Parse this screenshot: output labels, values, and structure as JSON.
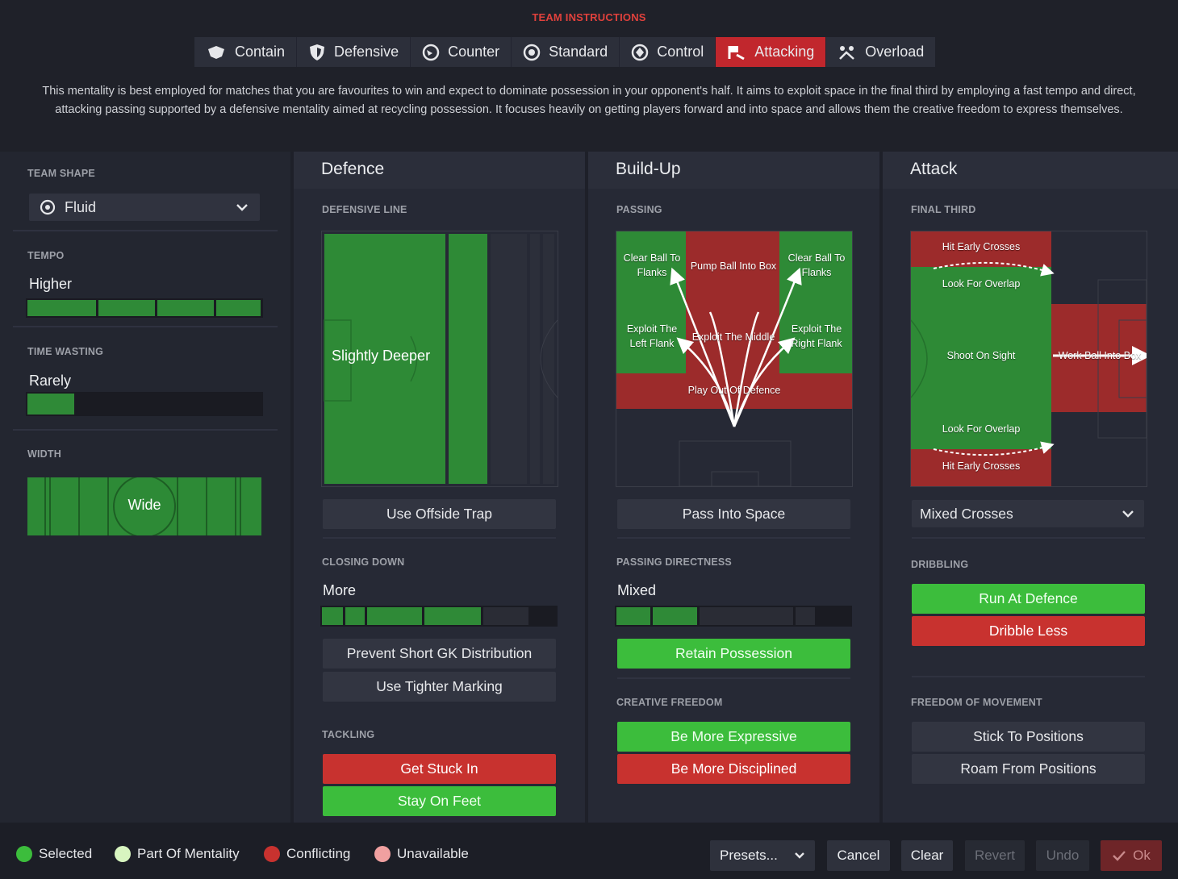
{
  "header": {
    "title": "TEAM INSTRUCTIONS",
    "tabs": [
      {
        "label": "Contain",
        "icon": "contain-icon",
        "active": false
      },
      {
        "label": "Defensive",
        "icon": "shield-icon",
        "active": false
      },
      {
        "label": "Counter",
        "icon": "counter-icon",
        "active": false
      },
      {
        "label": "Standard",
        "icon": "standard-icon",
        "active": false
      },
      {
        "label": "Control",
        "icon": "control-icon",
        "active": false
      },
      {
        "label": "Attacking",
        "icon": "attacking-icon",
        "active": true
      },
      {
        "label": "Overload",
        "icon": "overload-icon",
        "active": false
      }
    ],
    "description": "This mentality is best employed for matches that you are favourites to win and expect to dominate possession in your opponent's half. It aims to exploit space in the final third by employing a fast tempo and direct, attacking passing supported by a defensive mentality aimed at recycling possession. It focuses heavily on getting players forward and into space and allows them the creative freedom to express themselves."
  },
  "left": {
    "team_shape_label": "TEAM SHAPE",
    "team_shape_value": "Fluid",
    "tempo_label": "TEMPO",
    "tempo_value": "Higher",
    "tempo_level": 4,
    "time_wasting_label": "TIME WASTING",
    "time_wasting_value": "Rarely",
    "time_wasting_level": 0.2,
    "width_label": "WIDTH",
    "width_value": "Wide"
  },
  "defence": {
    "title": "Defence",
    "defensive_line_label": "DEFENSIVE LINE",
    "line_value": "Slightly Deeper",
    "offside_button": "Use Offside Trap",
    "closing_down_label": "CLOSING DOWN",
    "closing_down_value": "More",
    "gk_button": "Prevent Short GK Distribution",
    "marking_button": "Use Tighter Marking",
    "tackling_label": "TACKLING",
    "tackle_red": "Get Stuck In",
    "tackle_green": "Stay On Feet"
  },
  "buildup": {
    "title": "Build-Up",
    "passing_label": "PASSING",
    "zones": {
      "clear_left": "Clear Ball To Flanks",
      "pump": "Pump Ball Into Box",
      "clear_right": "Clear Ball To Flanks",
      "exploit_left": "Exploit The Left Flank",
      "exploit_middle": "Exploit The Middle",
      "exploit_right": "Exploit The Right Flank",
      "play_out": "Play Out Of Defence"
    },
    "space_button": "Pass Into Space",
    "directness_label": "PASSING DIRECTNESS",
    "directness_value": "Mixed",
    "retain_button": "Retain Possession",
    "creative_label": "CREATIVE FREEDOM",
    "expressive_button": "Be More Expressive",
    "disciplined_button": "Be More Disciplined"
  },
  "attack": {
    "title": "Attack",
    "final_third_label": "FINAL THIRD",
    "zones": {
      "hit_early_top": "Hit Early Crosses",
      "overlap_top": "Look For Overlap",
      "shoot": "Shoot On Sight",
      "work_ball": "Work Ball Into Box",
      "overlap_bottom": "Look For Overlap",
      "hit_early_bottom": "Hit Early Crosses"
    },
    "crosses_value": "Mixed Crosses",
    "dribbling_label": "DRIBBLING",
    "run_button": "Run At Defence",
    "dribble_less_button": "Dribble Less",
    "movement_label": "FREEDOM OF MOVEMENT",
    "stick_button": "Stick To Positions",
    "roam_button": "Roam From Positions"
  },
  "footer": {
    "legend": {
      "selected": "Selected",
      "mentality": "Part Of Mentality",
      "conflicting": "Conflicting",
      "unavailable": "Unavailable"
    },
    "presets": "Presets...",
    "cancel": "Cancel",
    "clear": "Clear",
    "revert": "Revert",
    "undo": "Undo",
    "ok": "Ok"
  },
  "colors": {
    "accent_red": "#c1272d",
    "selected_green": "#3cbd3c",
    "mentality_green": "#2f8a37",
    "conflict_red": "#c8322f",
    "unavailable_pink": "#f0a0a0"
  }
}
